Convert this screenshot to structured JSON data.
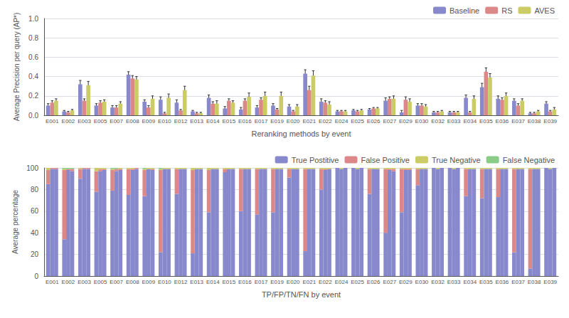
{
  "chart_data": [
    {
      "type": "bar",
      "x_label": "Reranking methods by event",
      "y_label": "Average Precision per query (AP*)",
      "categories": [
        "E001",
        "E002",
        "E003",
        "E005",
        "E007",
        "E008",
        "E009",
        "E010",
        "E012",
        "E013",
        "E014",
        "E015",
        "E016",
        "E017",
        "E019",
        "E020",
        "E021",
        "E022",
        "E024",
        "E025",
        "E026",
        "E027",
        "E029",
        "E030",
        "E032",
        "E033",
        "E034",
        "E035",
        "E036",
        "E037",
        "E038",
        "E039"
      ],
      "series": [
        {
          "name": "Baseline",
          "color": "#8888cc",
          "values": [
            0.1,
            0.04,
            0.32,
            0.1,
            0.08,
            0.42,
            0.14,
            0.16,
            0.13,
            0.04,
            0.18,
            0.07,
            0.06,
            0.08,
            0.1,
            0.09,
            0.43,
            0.14,
            0.04,
            0.05,
            0.06,
            0.15,
            0.03,
            0.1,
            0.03,
            0.03,
            0.18,
            0.29,
            0.17,
            0.15,
            0.02,
            0.12
          ],
          "errors": [
            0.02,
            0.01,
            0.04,
            0.02,
            0.02,
            0.03,
            0.02,
            0.03,
            0.03,
            0.01,
            0.03,
            0.02,
            0.02,
            0.02,
            0.02,
            0.02,
            0.04,
            0.03,
            0.01,
            0.01,
            0.01,
            0.03,
            0.02,
            0.02,
            0.01,
            0.01,
            0.03,
            0.04,
            0.03,
            0.02,
            0.01,
            0.02
          ]
        },
        {
          "name": "RS",
          "color": "#dd8888",
          "values": [
            0.13,
            0.03,
            0.15,
            0.13,
            0.08,
            0.38,
            0.08,
            0.02,
            0.05,
            0.02,
            0.12,
            0.15,
            0.15,
            0.16,
            0.06,
            0.04,
            0.26,
            0.13,
            0.04,
            0.04,
            0.07,
            0.17,
            0.16,
            0.1,
            0.03,
            0.03,
            0.03,
            0.45,
            0.16,
            0.1,
            0.02,
            0.04
          ],
          "errors": [
            0.02,
            0.01,
            0.02,
            0.02,
            0.02,
            0.03,
            0.02,
            0.01,
            0.01,
            0.01,
            0.02,
            0.02,
            0.02,
            0.02,
            0.01,
            0.01,
            0.04,
            0.02,
            0.01,
            0.01,
            0.01,
            0.02,
            0.03,
            0.02,
            0.01,
            0.01,
            0.01,
            0.04,
            0.02,
            0.02,
            0.01,
            0.01
          ]
        },
        {
          "name": "AVES",
          "color": "#cccc66",
          "values": [
            0.15,
            0.05,
            0.31,
            0.14,
            0.12,
            0.37,
            0.17,
            0.18,
            0.26,
            0.02,
            0.12,
            0.13,
            0.19,
            0.2,
            0.2,
            0.09,
            0.41,
            0.11,
            0.04,
            0.05,
            0.07,
            0.17,
            0.14,
            0.09,
            0.04,
            0.03,
            0.17,
            0.39,
            0.2,
            0.15,
            0.04,
            0.06
          ],
          "errors": [
            0.02,
            0.01,
            0.04,
            0.02,
            0.02,
            0.03,
            0.03,
            0.04,
            0.04,
            0.01,
            0.03,
            0.02,
            0.04,
            0.04,
            0.04,
            0.02,
            0.05,
            0.03,
            0.01,
            0.01,
            0.01,
            0.03,
            0.03,
            0.02,
            0.01,
            0.01,
            0.03,
            0.04,
            0.03,
            0.02,
            0.01,
            0.02
          ]
        }
      ],
      "ylim": [
        0,
        1.0
      ],
      "yticks": [
        {
          "value": 0,
          "label": "0.0"
        },
        0.2,
        0.4,
        0.6,
        0.8,
        {
          "value": 1.0,
          "label": "1.0"
        }
      ],
      "grid": true,
      "legend": "upper right"
    },
    {
      "type": "bar",
      "stacked": true,
      "x_label": "TP/FP/TN/FN by event",
      "y_label": "Average percentage",
      "categories": [
        "E001",
        "E002",
        "E003",
        "E005",
        "E007",
        "E008",
        "E009",
        "E010",
        "E012",
        "E013",
        "E014",
        "E015",
        "E016",
        "E017",
        "E019",
        "E020",
        "E021",
        "E022",
        "E024",
        "E025",
        "E026",
        "E027",
        "E029",
        "E030",
        "E032",
        "E033",
        "E034",
        "E035",
        "E036",
        "E037",
        "E038",
        "E039"
      ],
      "series": [
        {
          "name": "True Postitive",
          "color": "#8888cc",
          "values": [
            [
              85,
              34,
              90,
              78,
              79,
              75,
              74,
              22,
              76,
              21,
              59,
              96,
              60,
              57,
              59,
              91,
              23,
              80,
              100,
              100,
              76,
              40,
              59,
              84,
              100,
              100,
              74,
              72,
              73,
              22,
              7,
              100
            ],
            [
              99,
              98,
              99,
              97,
              97,
              98,
              99,
              99,
              99,
              99,
              99,
              99,
              99,
              99,
              99,
              99,
              99,
              98,
              99,
              99,
              99,
              98,
              98,
              99,
              99,
              99,
              99,
              99,
              99,
              99,
              99,
              99
            ],
            [
              99,
              97,
              99,
              98,
              98,
              99,
              98,
              99,
              99,
              99,
              99,
              99,
              99,
              99,
              99,
              99,
              99,
              99,
              100,
              100,
              99,
              97,
              98,
              99,
              100,
              100,
              99,
              99,
              99,
              99,
              99,
              100
            ]
          ]
        },
        {
          "name": "False Positive",
          "color": "#dd8888",
          "values": [
            [
              13,
              64,
              9,
              19,
              19,
              24,
              24,
              76,
              23,
              77,
              39,
              3,
              39,
              42,
              40,
              8,
              76,
              19,
              0,
              0,
              23,
              59,
              40,
              15,
              0,
              0,
              25,
              27,
              26,
              77,
              92,
              0
            ],
            [
              1,
              1,
              1,
              2,
              2,
              1,
              0,
              0,
              0,
              0,
              0,
              0,
              0,
              0,
              0,
              0,
              0,
              1,
              0,
              0,
              0,
              1,
              1,
              0,
              0,
              0,
              0,
              0,
              0,
              0,
              0,
              0
            ],
            [
              1,
              2,
              1,
              1,
              1,
              1,
              1,
              0,
              0,
              0,
              0,
              0,
              0,
              0,
              0,
              0,
              0,
              0,
              0,
              0,
              0,
              2,
              1,
              0,
              0,
              0,
              0,
              0,
              0,
              0,
              0,
              0
            ]
          ]
        },
        {
          "name": "True Negative",
          "color": "#cccc66",
          "values": [
            [
              2,
              1,
              1,
              3,
              1,
              1,
              1,
              1,
              1,
              2,
              2,
              1,
              1,
              1,
              1,
              1,
              1,
              1,
              0,
              0,
              1,
              1,
              1,
              1,
              0,
              0,
              1,
              1,
              1,
              1,
              1,
              0
            ],
            [
              0,
              0,
              0,
              1,
              0,
              1,
              1,
              1,
              1,
              1,
              1,
              1,
              1,
              1,
              1,
              1,
              1,
              1,
              1,
              1,
              1,
              1,
              1,
              1,
              1,
              1,
              1,
              1,
              1,
              1,
              1,
              1
            ],
            [
              0,
              0,
              0,
              1,
              1,
              0,
              1,
              1,
              1,
              1,
              1,
              1,
              1,
              1,
              1,
              1,
              1,
              1,
              0,
              0,
              1,
              1,
              1,
              1,
              0,
              0,
              1,
              1,
              1,
              1,
              1,
              0
            ]
          ]
        },
        {
          "name": "False Negative",
          "color": "#88cc88",
          "values": [
            [
              0,
              1,
              0,
              0,
              1,
              0,
              1,
              1,
              0,
              0,
              0,
              0,
              0,
              0,
              0,
              0,
              0,
              0,
              0,
              0,
              0,
              0,
              0,
              0,
              0,
              0,
              0,
              0,
              0,
              0,
              0,
              0
            ],
            [
              0,
              1,
              0,
              0,
              1,
              0,
              0,
              0,
              0,
              0,
              0,
              0,
              0,
              0,
              0,
              0,
              0,
              0,
              0,
              0,
              0,
              0,
              0,
              0,
              0,
              0,
              0,
              0,
              0,
              0,
              0,
              0
            ],
            [
              0,
              1,
              0,
              0,
              0,
              0,
              0,
              0,
              0,
              0,
              0,
              0,
              0,
              0,
              0,
              0,
              0,
              0,
              0,
              0,
              0,
              0,
              0,
              0,
              0,
              0,
              0,
              0,
              0,
              0,
              0,
              0
            ]
          ]
        }
      ],
      "ylim": [
        0,
        100
      ],
      "yticks": [
        0,
        20,
        40,
        60,
        80,
        100
      ],
      "grid": true,
      "legend": "upper right"
    }
  ]
}
